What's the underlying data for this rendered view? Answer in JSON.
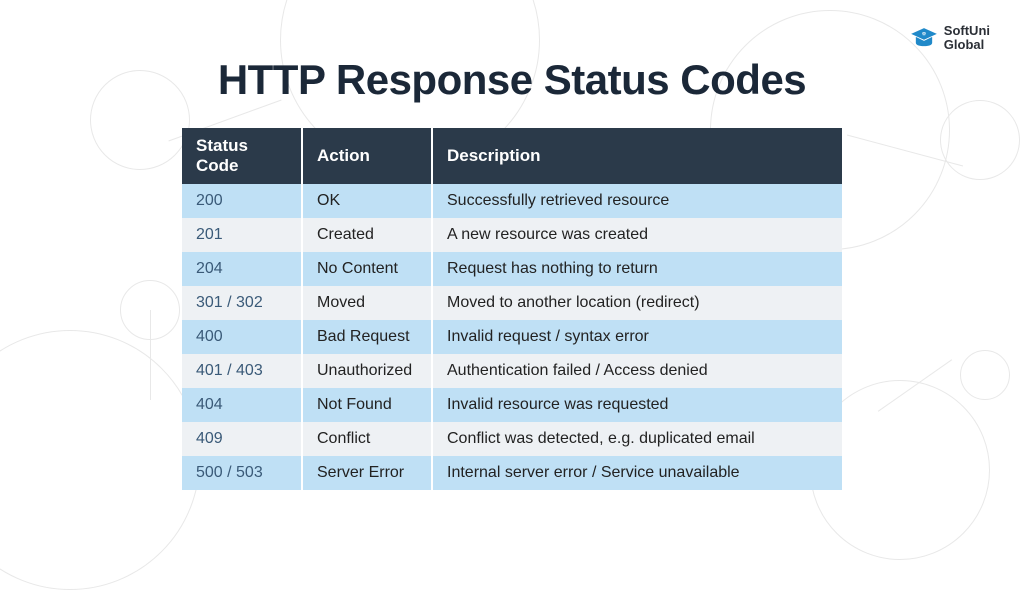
{
  "logo": {
    "brand_top": "SoftUni",
    "brand_bottom": "Global",
    "icon_color": "#2089c9"
  },
  "title": "HTTP Response Status Codes",
  "table": {
    "columns": [
      "Status Code",
      "Action",
      "Description"
    ],
    "header_bg": "#2b3a4a",
    "header_text_color": "#ffffff",
    "row_alt_a_bg": "#bfe0f5",
    "row_alt_b_bg": "#eef1f4",
    "code_text_color": "#3a5a78",
    "body_text_color": "#222222",
    "rows": [
      {
        "code": "200",
        "action": "OK",
        "description": "Successfully retrieved resource"
      },
      {
        "code": "201",
        "action": "Created",
        "description": "A new resource was created"
      },
      {
        "code": "204",
        "action": "No Content",
        "description": "Request has nothing to return"
      },
      {
        "code": "301 / 302",
        "action": "Moved",
        "description": "Moved to another location (redirect)"
      },
      {
        "code": "400",
        "action": "Bad Request",
        "description": "Invalid request / syntax error"
      },
      {
        "code": "401 / 403",
        "action": "Unauthorized",
        "description": "Authentication failed / Access denied"
      },
      {
        "code": "404",
        "action": "Not Found",
        "description": "Invalid resource was requested"
      },
      {
        "code": "409",
        "action": "Conflict",
        "description": "Conflict was detected, e.g. duplicated email"
      },
      {
        "code": "500 / 503",
        "action": "Server Error",
        "description": "Internal server error / Service unavailable"
      }
    ]
  },
  "background": {
    "circle_border_color": "#e8e8e8",
    "page_bg": "#ffffff"
  },
  "typography": {
    "title_fontsize": 42,
    "title_weight": 800,
    "header_fontsize": 17,
    "cell_fontsize": 16
  }
}
